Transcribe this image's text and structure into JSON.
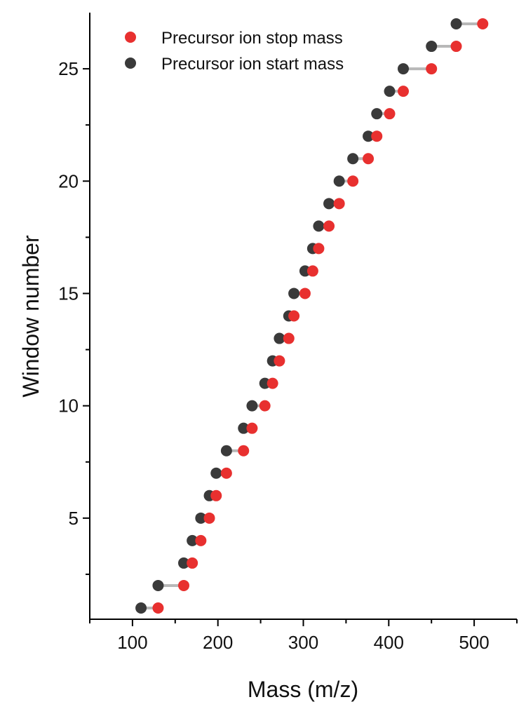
{
  "colors": {
    "stop": "#e8302f",
    "start": "#3a3a3a",
    "connector": "#b8b8b8",
    "axis": "#000000"
  },
  "chart_data": {
    "type": "scatter",
    "xlabel": "Mass (m/z)",
    "ylabel": "Window number",
    "xlim": [
      50,
      550
    ],
    "ylim": [
      0.5,
      27.5
    ],
    "xticks": [
      100,
      200,
      300,
      400,
      500
    ],
    "yticks": [
      5,
      10,
      15,
      20,
      25
    ],
    "legend_position": "top-left",
    "series": [
      {
        "name": "Precursor ion stop mass",
        "color": "#e8302f",
        "points": [
          {
            "window": 1,
            "mass": 130
          },
          {
            "window": 2,
            "mass": 160
          },
          {
            "window": 3,
            "mass": 170
          },
          {
            "window": 4,
            "mass": 180
          },
          {
            "window": 5,
            "mass": 190
          },
          {
            "window": 6,
            "mass": 198
          },
          {
            "window": 7,
            "mass": 210
          },
          {
            "window": 8,
            "mass": 230
          },
          {
            "window": 9,
            "mass": 240
          },
          {
            "window": 10,
            "mass": 255
          },
          {
            "window": 11,
            "mass": 264
          },
          {
            "window": 12,
            "mass": 272
          },
          {
            "window": 13,
            "mass": 283
          },
          {
            "window": 14,
            "mass": 289
          },
          {
            "window": 15,
            "mass": 302
          },
          {
            "window": 16,
            "mass": 311
          },
          {
            "window": 17,
            "mass": 318
          },
          {
            "window": 18,
            "mass": 330
          },
          {
            "window": 19,
            "mass": 342
          },
          {
            "window": 20,
            "mass": 358
          },
          {
            "window": 21,
            "mass": 376
          },
          {
            "window": 22,
            "mass": 386
          },
          {
            "window": 23,
            "mass": 401
          },
          {
            "window": 24,
            "mass": 417
          },
          {
            "window": 25,
            "mass": 450
          },
          {
            "window": 26,
            "mass": 479
          },
          {
            "window": 27,
            "mass": 510
          }
        ]
      },
      {
        "name": "Precursor ion start mass",
        "color": "#3a3a3a",
        "points": [
          {
            "window": 1,
            "mass": 110
          },
          {
            "window": 2,
            "mass": 130
          },
          {
            "window": 3,
            "mass": 160
          },
          {
            "window": 4,
            "mass": 170
          },
          {
            "window": 5,
            "mass": 180
          },
          {
            "window": 6,
            "mass": 190
          },
          {
            "window": 7,
            "mass": 198
          },
          {
            "window": 8,
            "mass": 210
          },
          {
            "window": 9,
            "mass": 230
          },
          {
            "window": 10,
            "mass": 240
          },
          {
            "window": 11,
            "mass": 255
          },
          {
            "window": 12,
            "mass": 264
          },
          {
            "window": 13,
            "mass": 272
          },
          {
            "window": 14,
            "mass": 283
          },
          {
            "window": 15,
            "mass": 289
          },
          {
            "window": 16,
            "mass": 302
          },
          {
            "window": 17,
            "mass": 311
          },
          {
            "window": 18,
            "mass": 318
          },
          {
            "window": 19,
            "mass": 330
          },
          {
            "window": 20,
            "mass": 342
          },
          {
            "window": 21,
            "mass": 358
          },
          {
            "window": 22,
            "mass": 376
          },
          {
            "window": 23,
            "mass": 386
          },
          {
            "window": 24,
            "mass": 401
          },
          {
            "window": 25,
            "mass": 417
          },
          {
            "window": 26,
            "mass": 450
          },
          {
            "window": 27,
            "mass": 479
          }
        ]
      }
    ]
  }
}
